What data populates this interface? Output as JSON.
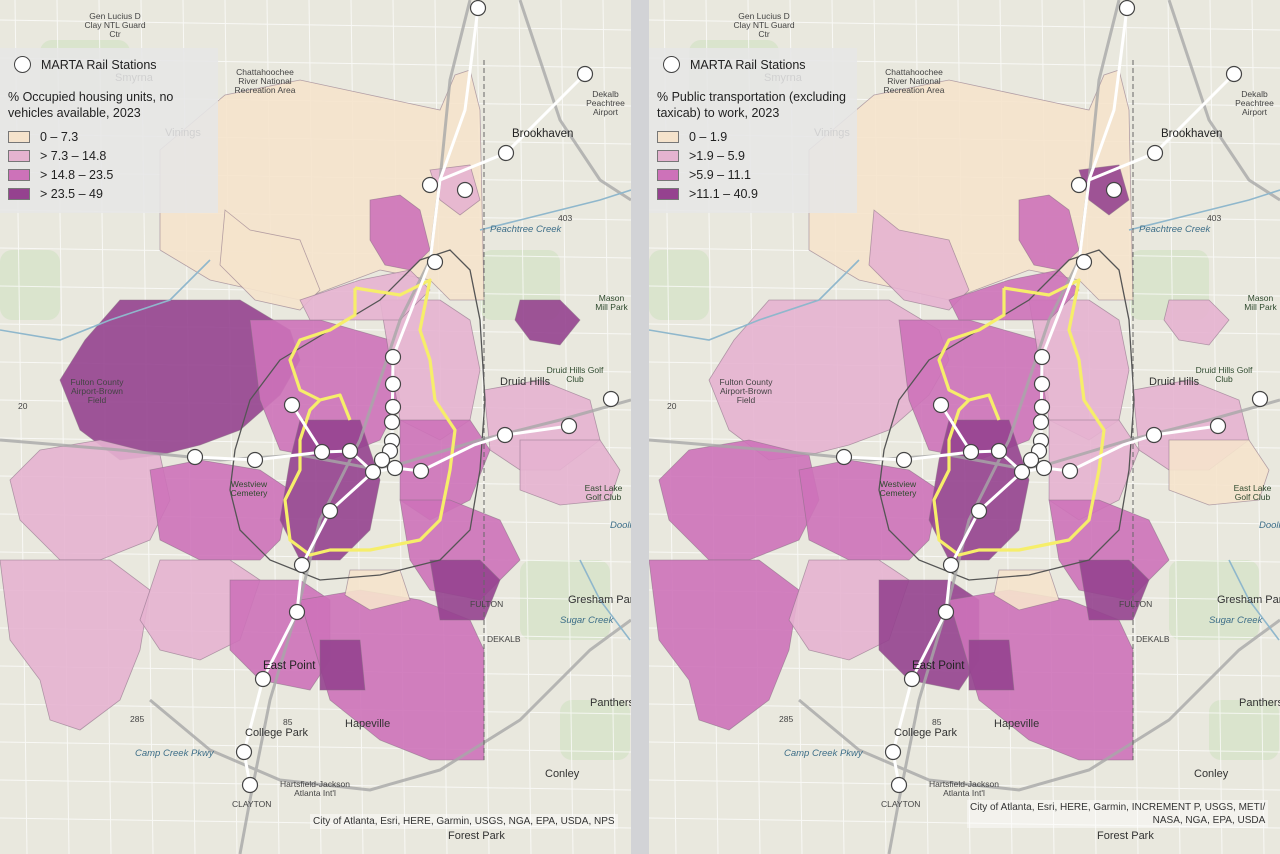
{
  "legend_station_label": "MARTA Rail Stations",
  "left_map": {
    "legend_title": "% Occupied housing units, no vehicles available, 2023",
    "classes": [
      {
        "label": "0 – 7.3",
        "color": "#f5e3cc"
      },
      {
        "label": "> 7.3 – 14.8",
        "color": "#e5b3d0"
      },
      {
        "label": "> 14.8 – 23.5",
        "color": "#cd72b9"
      },
      {
        "label": "> 23.5 – 49",
        "color": "#95428f"
      }
    ],
    "attribution": "City of Atlanta, Esri, HERE, Garmin, USGS, NGA, EPA, USDA, NPS"
  },
  "right_map": {
    "legend_title": "% Public transportation (excluding taxicab) to work, 2023",
    "classes": [
      {
        "label": "0 – 1.9",
        "color": "#f5e3cc"
      },
      {
        "label": ">1.9 – 5.9",
        "color": "#e5b3d0"
      },
      {
        "label": ">5.9 – 11.1",
        "color": "#cd72b9"
      },
      {
        "label": ">11.1 – 40.9",
        "color": "#95428f"
      }
    ],
    "attribution_line1": "City of Atlanta, Esri, HERE, Garmin, INCREMENT P, USGS, METI/",
    "attribution_line2": "NASA, NGA, EPA, USDA"
  },
  "place_labels": {
    "brookhaven": "Brookhaven",
    "east_point": "East Point",
    "college_park": "College Park",
    "hapeville": "Hapeville",
    "forest_park": "Forest Park",
    "conley": "Conley",
    "gresham_park": "Gresham Park",
    "panthers": "Panthers",
    "druid_hills": "Druid Hills",
    "smyrna": "Smyrna",
    "vinings": "Vinings",
    "dekalb": "DEKALB",
    "fulton": "FULTON",
    "clayton": "CLAYTON",
    "peachtree_creek": "Peachtree Creek",
    "sugar_creek": "Sugar Creek",
    "camp_creek_pkwy": "Camp Creek Pkwy",
    "gen_lucius": "Gen Lucius D Clay NTL Guard Ctr",
    "chattahoochee": "Chattahoochee River National Recreation Area",
    "dekalb_airport": "Dekalb Peachtree Airport",
    "fulton_airport": "Fulton County Airport-Brown Field",
    "hartsfield": "Hartsfield-Jackson Atlanta Int'l",
    "mason_mill": "Mason Mill Park",
    "druid_golf": "Druid Hills Golf Club",
    "east_lake": "East Lake Golf Club",
    "westview": "Westview Cemetery",
    "doolittle": "Doolittle Creek",
    "hwy_403": "403",
    "hwy_285": "285",
    "hwy_85": "85",
    "hwy_20": "20"
  }
}
